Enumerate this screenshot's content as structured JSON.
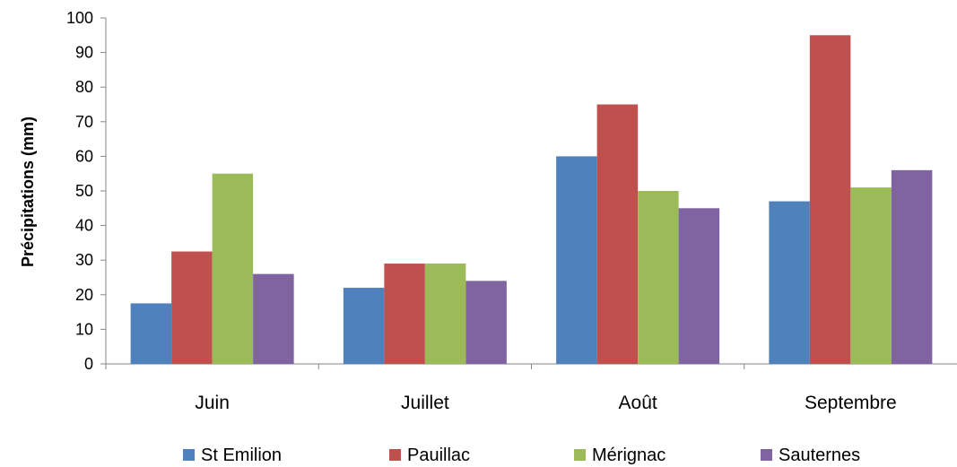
{
  "chart_data": {
    "type": "bar",
    "title": "",
    "xlabel": "",
    "ylabel": "Précipitations (mm)",
    "ylim": [
      0,
      100
    ],
    "yticks": [
      0,
      10,
      20,
      30,
      40,
      50,
      60,
      70,
      80,
      90,
      100
    ],
    "categories": [
      "Juin",
      "Juillet",
      "Août",
      "Septembre"
    ],
    "series": [
      {
        "name": "St Emilion",
        "color": "#4F81BD",
        "values": [
          17.5,
          22,
          60,
          47
        ]
      },
      {
        "name": "Pauillac",
        "color": "#C0504D",
        "values": [
          32.5,
          29,
          75,
          95
        ]
      },
      {
        "name": "Mérignac",
        "color": "#9BBB59",
        "values": [
          55,
          29,
          50,
          51
        ]
      },
      {
        "name": "Sauternes",
        "color": "#8064A2",
        "values": [
          26,
          24,
          45,
          56
        ]
      }
    ],
    "grid": false,
    "legend": "bottom"
  }
}
